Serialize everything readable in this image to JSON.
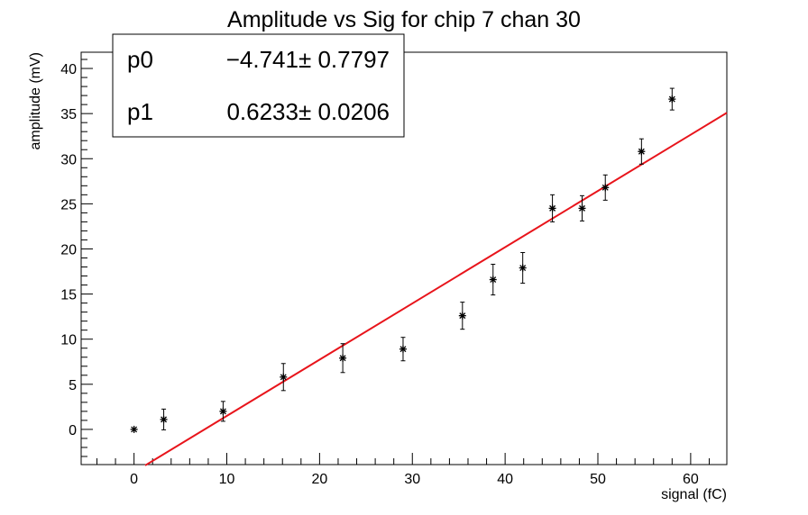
{
  "chart_data": {
    "type": "scatter",
    "title": "Amplitude vs Sig for chip 7 chan 30",
    "xlabel": "signal (fC)",
    "ylabel": "amplitude (mV)",
    "xlim": [
      -5.7,
      63.9
    ],
    "ylim": [
      -3.9,
      41.8
    ],
    "x_major_ticks": [
      0,
      10,
      20,
      30,
      40,
      50,
      60
    ],
    "y_major_ticks": [
      0,
      5,
      10,
      15,
      20,
      25,
      30,
      35,
      40
    ],
    "grid": false,
    "legend": "none",
    "series": [
      {
        "marker": "star",
        "color": "#000000",
        "points": [
          {
            "x": 0.0,
            "y": 0.0,
            "yerr": 0.0
          },
          {
            "x": 3.2,
            "y": 1.1,
            "yerr": 1.15
          },
          {
            "x": 9.6,
            "y": 2.0,
            "yerr": 1.1
          },
          {
            "x": 16.1,
            "y": 5.8,
            "yerr": 1.5
          },
          {
            "x": 22.5,
            "y": 7.9,
            "yerr": 1.6
          },
          {
            "x": 29.0,
            "y": 8.9,
            "yerr": 1.3
          },
          {
            "x": 35.4,
            "y": 12.6,
            "yerr": 1.5
          },
          {
            "x": 38.7,
            "y": 16.6,
            "yerr": 1.7
          },
          {
            "x": 41.9,
            "y": 17.9,
            "yerr": 1.7
          },
          {
            "x": 45.1,
            "y": 24.5,
            "yerr": 1.5
          },
          {
            "x": 48.3,
            "y": 24.5,
            "yerr": 1.4
          },
          {
            "x": 50.8,
            "y": 26.8,
            "yerr": 1.4
          },
          {
            "x": 54.7,
            "y": 30.8,
            "yerr": 1.4
          },
          {
            "x": 58.0,
            "y": 36.6,
            "yerr": 1.2
          }
        ]
      }
    ],
    "fit": {
      "function": "pol1",
      "color": "#e8141b",
      "p0": -4.741,
      "p1": 0.6233,
      "x_range": [
        1.2,
        63.9
      ]
    },
    "stats_box": {
      "rows": [
        {
          "name": "p0",
          "value": "−4.741± 0.7797"
        },
        {
          "name": "p1",
          "value": "0.6233± 0.0206"
        }
      ]
    }
  }
}
